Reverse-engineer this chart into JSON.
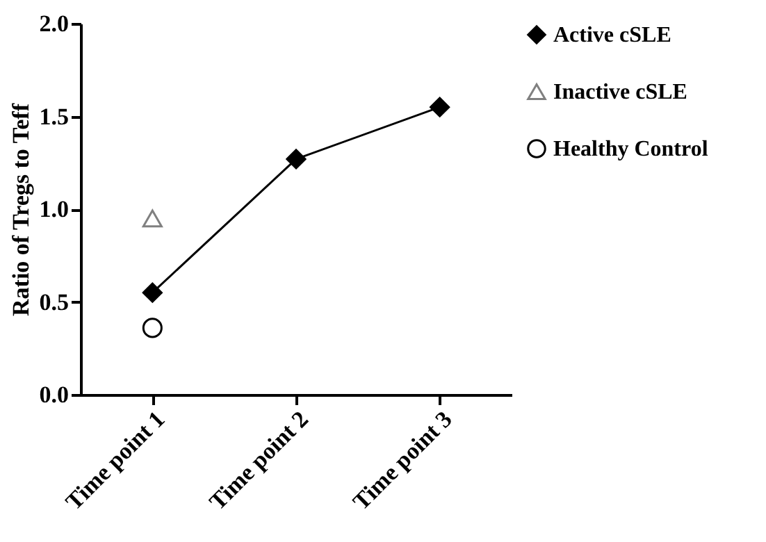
{
  "chart_data": {
    "type": "line",
    "ylabel": "Ratio of Tregs to Teff",
    "categories": [
      "Time point 1",
      "Time point 2",
      "Time point 3"
    ],
    "series": [
      {
        "name": "Active cSLE",
        "color": "#000000",
        "marker": "diamond",
        "values": [
          0.55,
          1.27,
          1.55
        ]
      },
      {
        "name": "Inactive cSLE",
        "color": "#808080",
        "type": "scatter",
        "marker": "triangle",
        "values": [
          0.95,
          null,
          null
        ]
      },
      {
        "name": "Healthy Control",
        "color": "#000000",
        "type": "scatter",
        "marker": "circle",
        "values": [
          0.36,
          null,
          null
        ]
      }
    ],
    "ylim": [
      0,
      2
    ],
    "yticks": [
      {
        "value": 0,
        "label": "0.0"
      },
      {
        "value": 0.5,
        "label": "0.5"
      },
      {
        "value": 1,
        "label": "1.0"
      },
      {
        "value": 1.5,
        "label": "1.5"
      },
      {
        "value": 2,
        "label": "2.0"
      }
    ],
    "grid": false,
    "legend": "right",
    "line_style": "solid"
  }
}
